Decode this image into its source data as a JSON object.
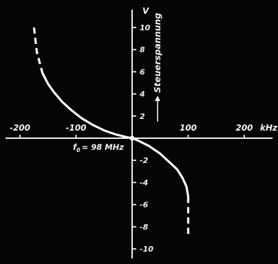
{
  "chart_data": {
    "type": "line",
    "xlabel": "kHz",
    "ylabel": "V",
    "y_axis_title": "Steuerspannung",
    "annotation": "f0 = 98 MHz",
    "annotation_main": "f",
    "annotation_sub": "0",
    "annotation_rest": "= 98 MHz",
    "xlim": [
      -240,
      240
    ],
    "ylim": [
      -11,
      11
    ],
    "x_ticks": [
      -200,
      -100,
      100,
      200
    ],
    "x_tick_labels": [
      "-200",
      "-100",
      "100",
      "200"
    ],
    "y_ticks": [
      -10,
      -8,
      -6,
      -4,
      -2,
      2,
      4,
      6,
      8,
      10
    ],
    "y_tick_labels": [
      "-10",
      "-8",
      "-6",
      "-4",
      "-2",
      "2",
      "4",
      "6",
      "8",
      "10"
    ],
    "series": [
      {
        "x": [
          -175,
          -170,
          -160,
          -150,
          -140,
          -125,
          -110,
          -90,
          -70,
          -50,
          -30,
          -10,
          0,
          10,
          30,
          50,
          65,
          80,
          90,
          97,
          100,
          100,
          100,
          100
        ],
        "y": [
          10,
          7.8,
          5.9,
          4.9,
          4.2,
          3.3,
          2.6,
          1.8,
          1.2,
          0.7,
          0.35,
          0.1,
          0,
          -0.2,
          -0.7,
          -1.4,
          -2.1,
          -2.8,
          -3.6,
          -4.4,
          -5.3,
          -6.5,
          -7.8,
          -9
        ],
        "dashed_from_x_lt": -160,
        "dashed_from_y_lt": -5.3
      }
    ]
  }
}
